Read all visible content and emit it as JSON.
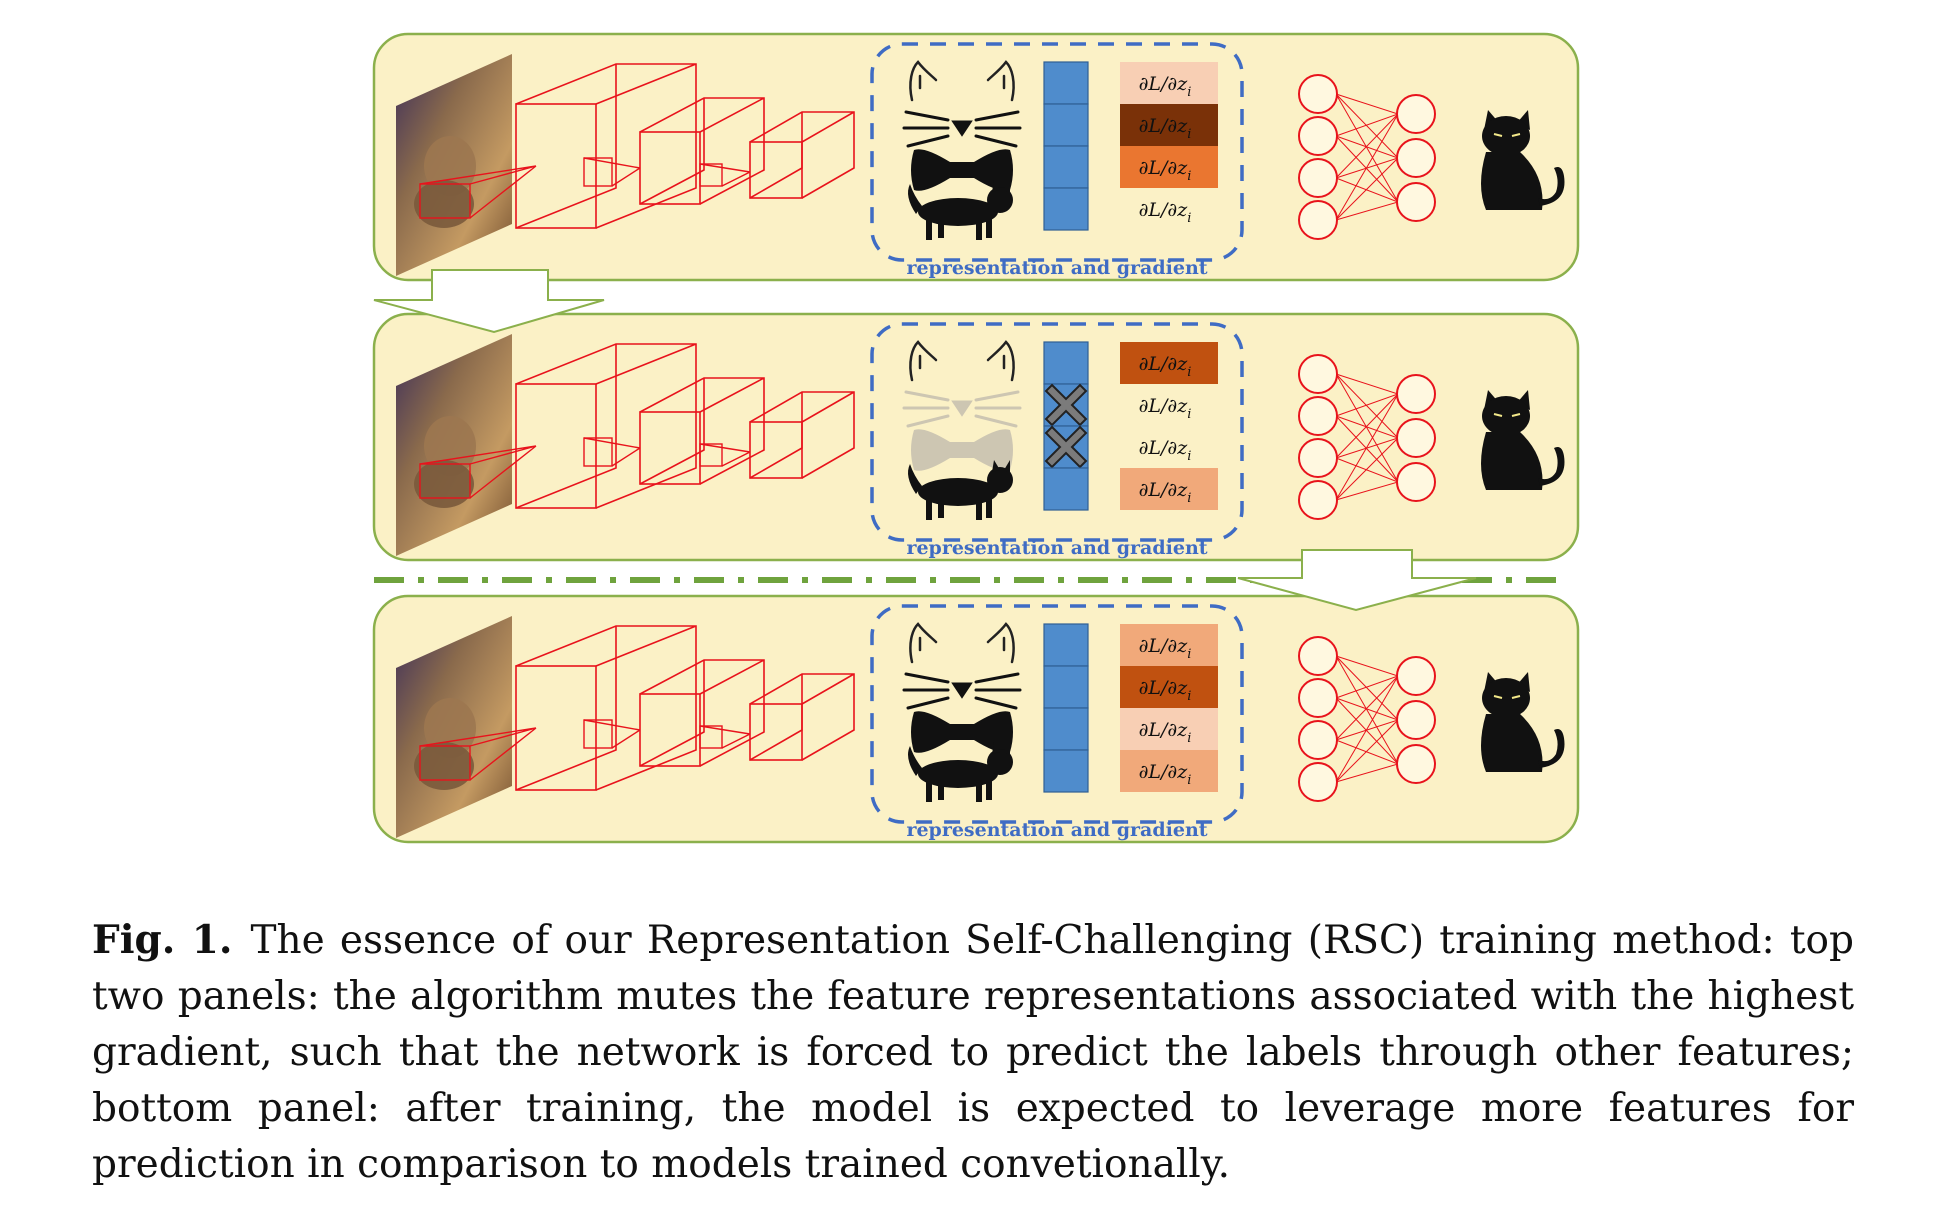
{
  "figure": {
    "representation_label": "representation and gradient",
    "gradient_label": "∂L/∂z",
    "gradient_subscript": "i",
    "colors": {
      "panel_fill": "#fbf1c6",
      "panel_border": "#8bb04c",
      "network_stroke": "#e8131c",
      "dashed_box": "#3f6cc4",
      "feature_bar": "#4f8ccc",
      "separator": "#6fa33d",
      "gradient_very_light": "#f8cfb4",
      "gradient_light": "#f1a97a",
      "gradient_medium": "#ea7630",
      "gradient_dark": "#c05110",
      "gradient_very_dark": "#7a3108",
      "muted_feature": "#cdc6b2"
    },
    "panels": [
      {
        "name": "panel-1",
        "gradients": [
          "very_light",
          "very_dark",
          "medium",
          "none"
        ],
        "muted": [
          false,
          false,
          false,
          false
        ]
      },
      {
        "name": "panel-2",
        "gradients": [
          "dark",
          "none",
          "none",
          "light"
        ],
        "muted": [
          false,
          true,
          true,
          false
        ]
      },
      {
        "name": "panel-3",
        "gradients": [
          "light",
          "dark",
          "very_light",
          "light"
        ],
        "muted": [
          false,
          false,
          false,
          false
        ]
      }
    ]
  },
  "caption": {
    "label": "Fig. 1.",
    "text": "The essence of our Representation Self-Challenging (RSC) training method: top two panels: the algorithm mutes the feature representations associated with the highest gradient, such that the network is forced to predict the labels through other features; bottom panel: after training, the model is expected to leverage more features for prediction in comparison to models trained convetionally."
  }
}
